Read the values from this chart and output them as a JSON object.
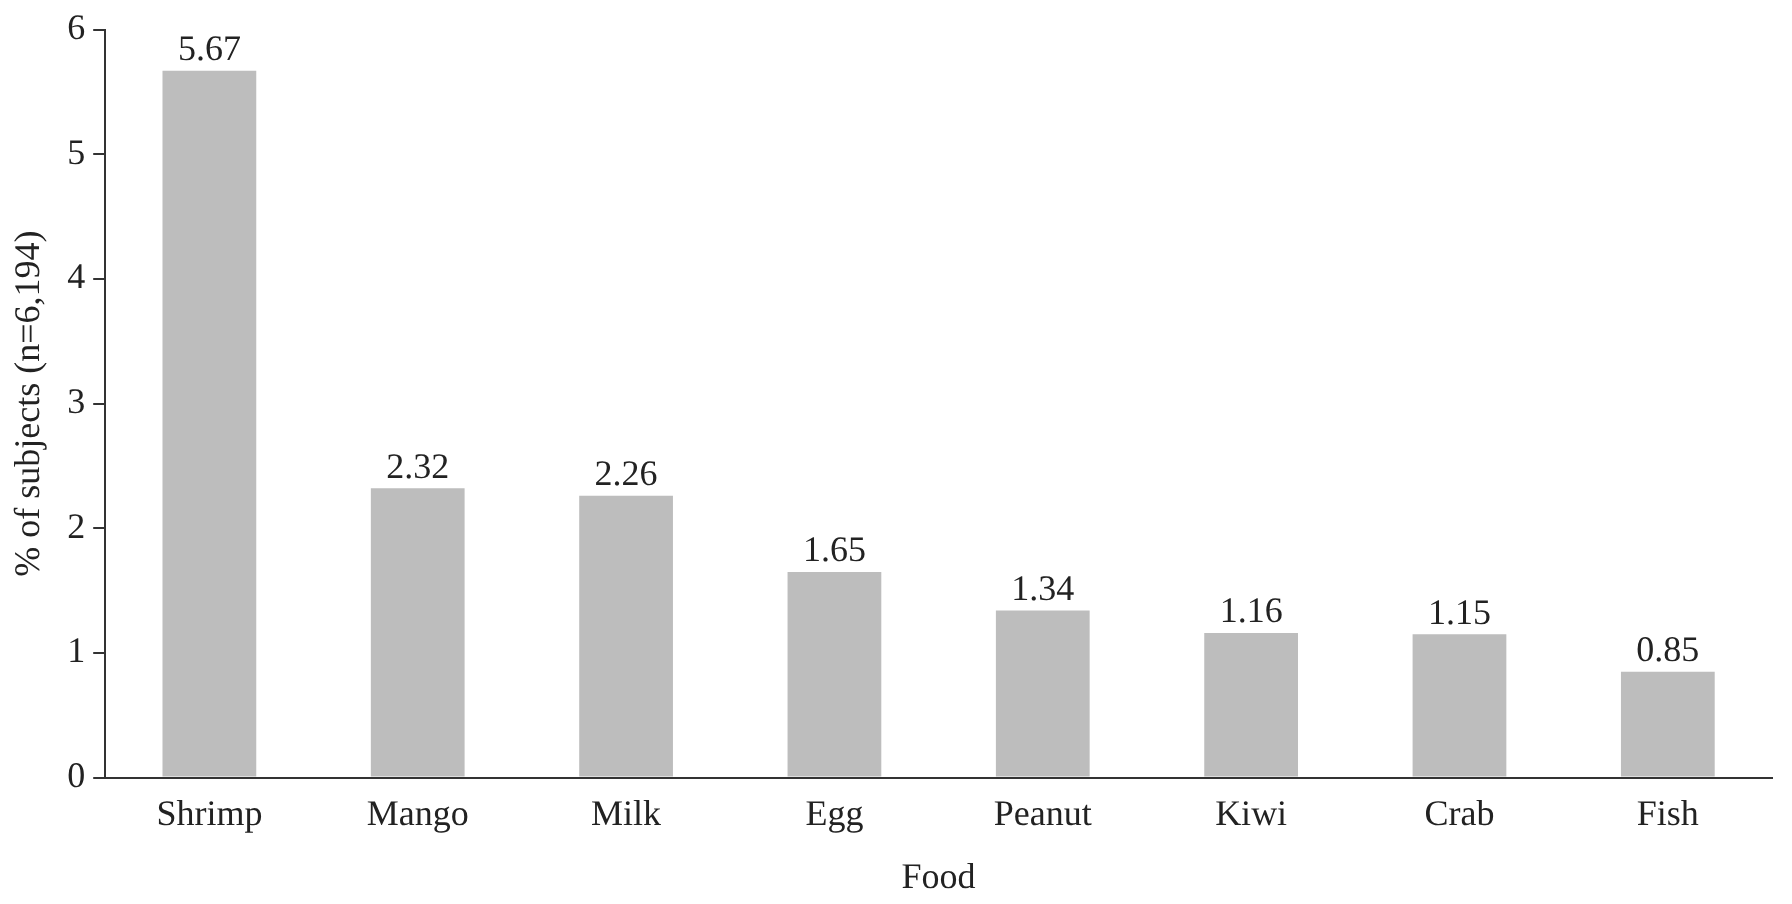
{
  "chart_data": {
    "type": "bar",
    "xlabel": "Food",
    "ylabel": "% of subjects (n=6,194)",
    "categories": [
      "Shrimp",
      "Mango",
      "Milk",
      "Egg",
      "Peanut",
      "Kiwi",
      "Crab",
      "Fish"
    ],
    "values": [
      5.67,
      2.32,
      2.26,
      1.65,
      1.34,
      1.16,
      1.15,
      0.85
    ],
    "color": "#bdbdbd",
    "ylim": [
      0,
      6
    ],
    "yticks": [
      0,
      1,
      2,
      3,
      4,
      5,
      6
    ],
    "data_labels": true
  }
}
